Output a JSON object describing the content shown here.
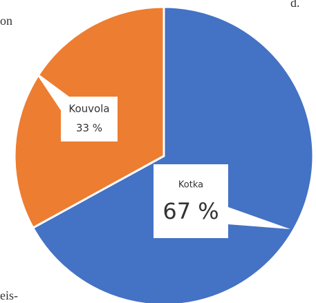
{
  "margin_text": [
    "d.",
    "on",
    "eis-"
  ],
  "chart_data": {
    "type": "pie",
    "categories": [
      "Kotka",
      "Kouvola"
    ],
    "values": [
      67,
      33
    ],
    "value_labels": [
      "67 %",
      "33 %"
    ],
    "colors": [
      "#4472c4",
      "#ed7d31"
    ]
  }
}
